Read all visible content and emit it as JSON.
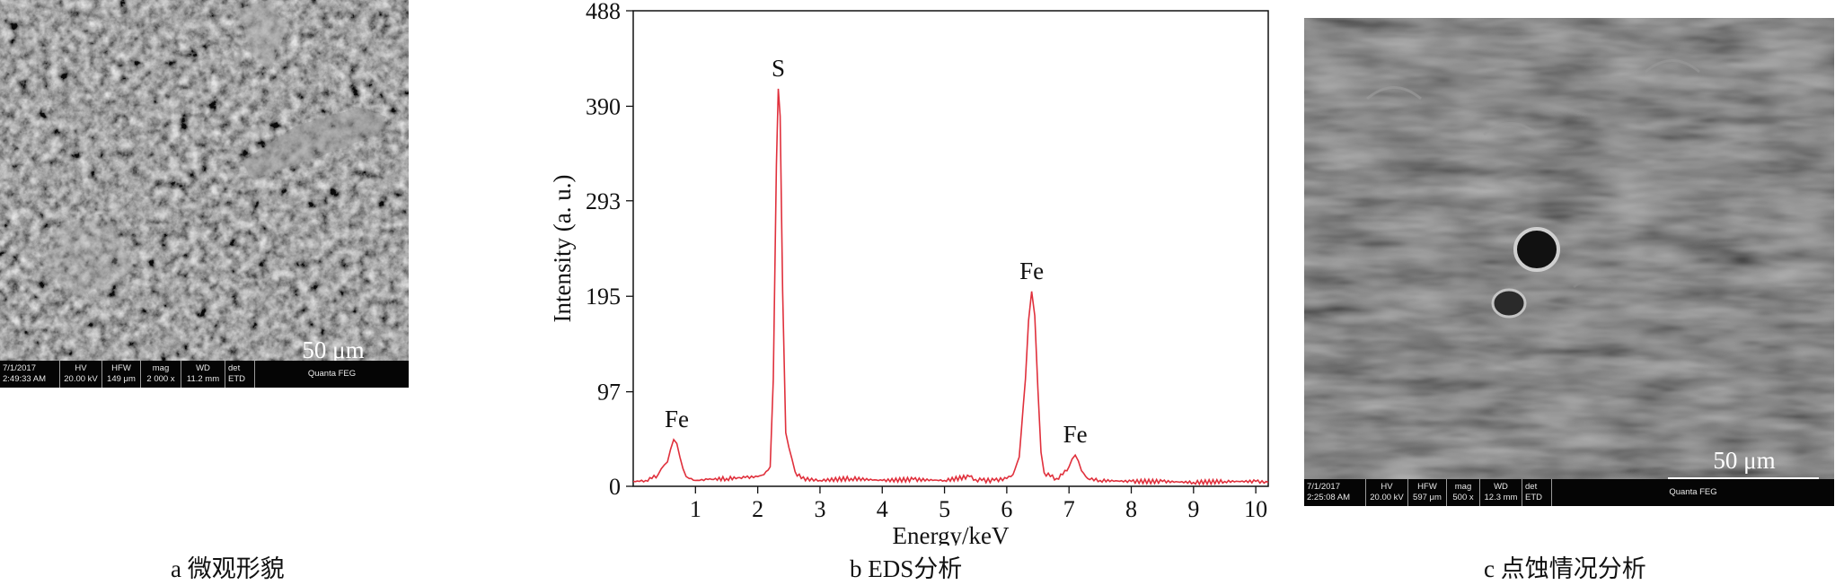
{
  "panel_a": {
    "caption": "a  微观形貌",
    "scale_label": "50 μm",
    "databar": [
      {
        "head": "7/1/2017",
        "value": "2:49:33 AM"
      },
      {
        "head": "HV",
        "value": "20.00 kV"
      },
      {
        "head": "HFW",
        "value": "149 μm"
      },
      {
        "head": "mag",
        "value": "2 000 x"
      },
      {
        "head": "WD",
        "value": "11.2 mm"
      },
      {
        "head": "det",
        "value": "ETD"
      },
      {
        "head": "",
        "value": "Quanta FEG"
      }
    ]
  },
  "panel_b": {
    "caption": "b  EDS分析"
  },
  "panel_c": {
    "caption": "c  点蚀情况分析",
    "scale_label": "50 μm",
    "databar": [
      {
        "head": "7/1/2017",
        "value": "2:25:08 AM"
      },
      {
        "head": "HV",
        "value": "20.00 kV"
      },
      {
        "head": "HFW",
        "value": "597 μm"
      },
      {
        "head": "mag",
        "value": "500 x"
      },
      {
        "head": "WD",
        "value": "12.3 mm"
      },
      {
        "head": "det",
        "value": "ETD"
      },
      {
        "head": "",
        "value": "Quanta FEG"
      }
    ]
  },
  "chart_data": {
    "type": "line",
    "xlabel": "Energy/keV",
    "ylabel": "Intensity (a. u.)",
    "xlim": [
      0,
      10.2
    ],
    "ylim": [
      0,
      488
    ],
    "xticks": [
      1,
      2,
      3,
      4,
      5,
      6,
      7,
      8,
      9,
      10
    ],
    "yticks": [
      0,
      97,
      195,
      293,
      390,
      488
    ],
    "line_color": "#e0303c",
    "series": [
      {
        "x": [
          0.0,
          0.1,
          0.2,
          0.3,
          0.4,
          0.45,
          0.5,
          0.55,
          0.6,
          0.65,
          0.7,
          0.75,
          0.8,
          0.85,
          0.9,
          1.0,
          1.2,
          1.5,
          1.8,
          2.0,
          2.1,
          2.2,
          2.25,
          2.3,
          2.33,
          2.36,
          2.4,
          2.45,
          2.5,
          2.55,
          2.6,
          2.7,
          3.0,
          3.5,
          4.0,
          4.5,
          5.0,
          5.4,
          5.5,
          5.6,
          5.8,
          6.0,
          6.1,
          6.2,
          6.3,
          6.35,
          6.4,
          6.45,
          6.5,
          6.55,
          6.6,
          6.7,
          6.8,
          6.9,
          7.0,
          7.05,
          7.1,
          7.15,
          7.2,
          7.3,
          7.5,
          8.0,
          8.5,
          9.0,
          9.5,
          10.0,
          10.2
        ],
        "y": [
          5,
          5,
          6,
          8,
          12,
          18,
          22,
          25,
          38,
          48,
          44,
          30,
          18,
          10,
          8,
          6,
          7,
          8,
          9,
          10,
          12,
          20,
          110,
          330,
          408,
          380,
          200,
          55,
          40,
          28,
          15,
          8,
          6,
          8,
          6,
          7,
          6,
          10,
          7,
          6,
          6,
          8,
          12,
          30,
          110,
          170,
          200,
          175,
          100,
          35,
          14,
          10,
          8,
          12,
          20,
          28,
          32,
          26,
          16,
          8,
          6,
          5,
          5,
          4,
          5,
          5,
          4
        ]
      }
    ],
    "annotations": [
      {
        "text": "Fe",
        "x": 0.7,
        "y": 48
      },
      {
        "text": "S",
        "x": 2.33,
        "y": 408
      },
      {
        "text": "Fe",
        "x": 6.4,
        "y": 200
      },
      {
        "text": "Fe",
        "x": 7.1,
        "y": 32
      }
    ]
  }
}
